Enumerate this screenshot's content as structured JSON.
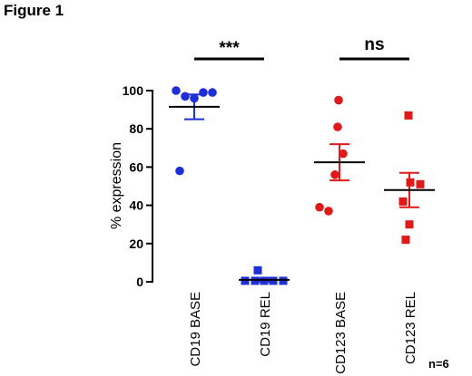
{
  "figure_label": "Figure 1",
  "sample_note": "n=6",
  "chart_data": {
    "type": "scatter",
    "ylabel": "% expression",
    "ylim": [
      0,
      100
    ],
    "yticks": [
      0,
      20,
      40,
      60,
      80,
      100
    ],
    "categories": [
      "CD19 BASE",
      "CD19 REL",
      "CD123 BASE",
      "CD123 REL"
    ],
    "groups": [
      {
        "category": "CD19 BASE",
        "marker": "circle",
        "color": "#1f2fd6",
        "points": [
          100,
          97,
          96,
          99,
          99,
          58
        ],
        "mean": 91.5,
        "sem_low": 85,
        "sem_high": 98
      },
      {
        "category": "CD19 REL",
        "marker": "square",
        "color": "#1f2fd6",
        "points": [
          6,
          0.5,
          0.5,
          0.5,
          0.5,
          0.5
        ],
        "mean": 1,
        "sem_low": 0,
        "sem_high": 2
      },
      {
        "category": "CD123 BASE",
        "marker": "circle",
        "color": "#e01919",
        "points": [
          95,
          81,
          67,
          56,
          39,
          37
        ],
        "mean": 62.5,
        "sem_low": 53,
        "sem_high": 72
      },
      {
        "category": "CD123 REL",
        "marker": "square",
        "color": "#e01919",
        "points": [
          87,
          52,
          51,
          42,
          30,
          22
        ],
        "mean": 48,
        "sem_low": 39,
        "sem_high": 57
      }
    ],
    "comparisons": [
      {
        "between": [
          "CD19 BASE",
          "CD19 REL"
        ],
        "label": "***"
      },
      {
        "between": [
          "CD123 BASE",
          "CD123 REL"
        ],
        "label": "ns"
      }
    ]
  }
}
